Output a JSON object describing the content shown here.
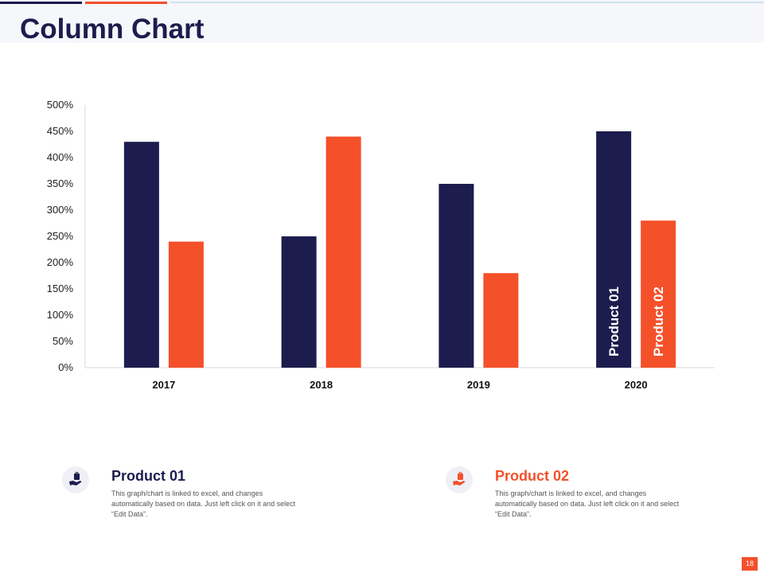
{
  "slide": {
    "title": "Column Chart",
    "page_number": "18"
  },
  "colors": {
    "navy": "#1c1c4e",
    "orange": "#f4502a",
    "light_blue": "#cfe3ee"
  },
  "chart_data": {
    "type": "bar",
    "categories": [
      "2017",
      "2018",
      "2019",
      "2020"
    ],
    "series": [
      {
        "name": "Product 01",
        "values": [
          430,
          250,
          350,
          450
        ],
        "color": "#1c1c4e"
      },
      {
        "name": "Product 02",
        "values": [
          240,
          440,
          180,
          280
        ],
        "color": "#f4502a"
      }
    ],
    "ylim": [
      0,
      500
    ],
    "yticks": [
      0,
      50,
      100,
      150,
      200,
      250,
      300,
      350,
      400,
      450,
      500
    ],
    "ytick_suffix": "%",
    "grid": false,
    "inline_labels_category": "2020"
  },
  "legend": [
    {
      "title": "Product 01",
      "description": "This graph/chart is linked to excel, and changes automatically based on data. Just left click on it and select “Edit Data”.",
      "icon": "hand-bag-icon",
      "color": "#1c1c4e"
    },
    {
      "title": "Product 02",
      "description": "This graph/chart is linked to excel, and changes automatically based on data. Just left click on it and select “Edit Data”.",
      "icon": "hand-bag-icon",
      "color": "#f4502a"
    }
  ]
}
